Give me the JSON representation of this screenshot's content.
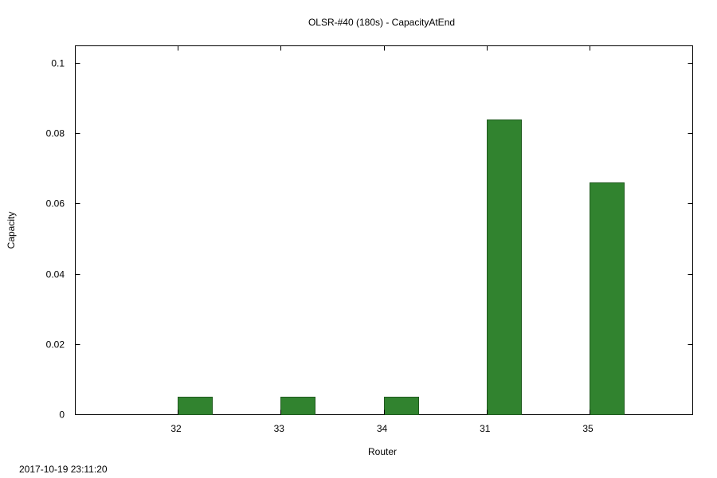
{
  "chart_data": {
    "type": "bar",
    "title": "OLSR-#40 (180s) - CapacityAtEnd",
    "xlabel": "Router",
    "ylabel": "Capacity",
    "categories": [
      "32",
      "33",
      "34",
      "31",
      "35"
    ],
    "values": [
      0.005,
      0.005,
      0.005,
      0.084,
      0.066
    ],
    "ylim": [
      0,
      0.105
    ],
    "yticks": [
      0,
      0.02,
      0.04,
      0.06,
      0.08,
      0.1
    ],
    "ytick_labels": [
      "0",
      "0.02",
      "0.04",
      "0.06",
      "0.08",
      "0.1"
    ],
    "grid": false,
    "bar_color": "#31832f",
    "bar_edge_color": "#1f5a1e"
  },
  "footer": {
    "timestamp": "2017-10-19 23:11:20"
  }
}
